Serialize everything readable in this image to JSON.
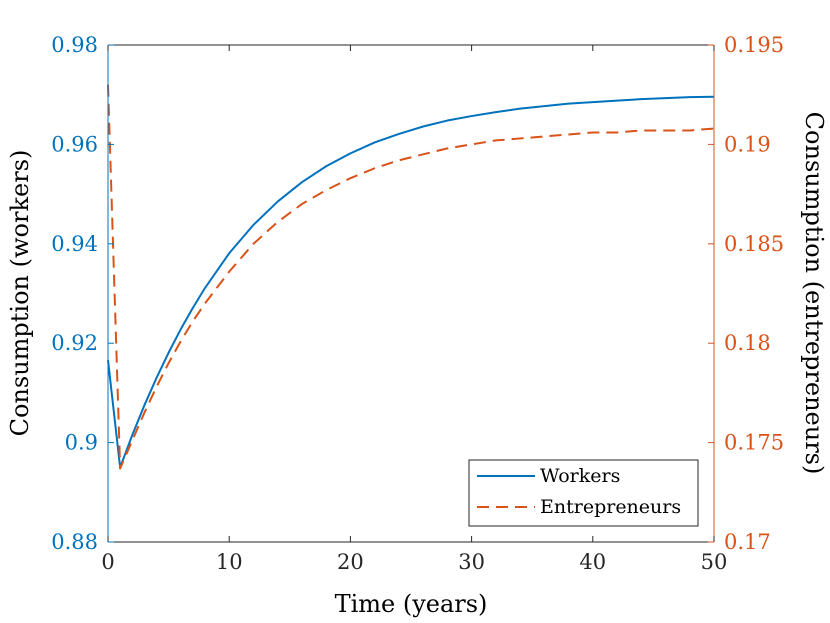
{
  "chart_data": {
    "type": "line",
    "xlabel": "Time (years)",
    "ylabel_left": "Consumption (workers)",
    "ylabel_right": "Consumption (entrepreneurs)",
    "xlim": [
      0,
      50
    ],
    "ylim_left": [
      0.88,
      0.98
    ],
    "ylim_right": [
      0.17,
      0.195
    ],
    "x_ticks": [
      "0",
      "10",
      "20",
      "30",
      "40",
      "50"
    ],
    "y_left_ticks": [
      "0.88",
      "0.9",
      "0.92",
      "0.94",
      "0.96",
      "0.98"
    ],
    "y_right_ticks": [
      "0.17",
      "0.175",
      "0.18",
      "0.185",
      "0.19",
      "0.195"
    ],
    "grid": false,
    "legend_position": "bottom-right",
    "colors": {
      "left_axis": "#0072BD",
      "right_axis": "#D95319",
      "axes": "#262626"
    },
    "series": [
      {
        "name": "Workers",
        "axis": "left",
        "style": "solid",
        "color": "#0072BD",
        "x": [
          0,
          1,
          2,
          3,
          4,
          5,
          6,
          7,
          8,
          10,
          12,
          14,
          16,
          18,
          20,
          22,
          24,
          26,
          28,
          30,
          32,
          34,
          36,
          38,
          40,
          42,
          44,
          46,
          48,
          50
        ],
        "y": [
          0.9166,
          0.895,
          0.9015,
          0.9075,
          0.913,
          0.9181,
          0.9228,
          0.9271,
          0.9311,
          0.9381,
          0.9438,
          0.9485,
          0.9524,
          0.9556,
          0.9582,
          0.9604,
          0.9621,
          0.9636,
          0.9648,
          0.9657,
          0.9665,
          0.9672,
          0.9677,
          0.9682,
          0.9685,
          0.9688,
          0.9691,
          0.9693,
          0.9695,
          0.9696
        ]
      },
      {
        "name": "Entrepreneurs",
        "axis": "right",
        "style": "dashed",
        "color": "#D95319",
        "x": [
          0,
          1,
          2,
          3,
          4,
          5,
          6,
          7,
          8,
          10,
          12,
          14,
          16,
          18,
          20,
          22,
          24,
          26,
          28,
          30,
          32,
          34,
          36,
          38,
          40,
          42,
          44,
          46,
          48,
          50
        ],
        "y": [
          0.193,
          0.1737,
          0.1751,
          0.1765,
          0.1778,
          0.179,
          0.1801,
          0.1811,
          0.182,
          0.1836,
          0.185,
          0.1861,
          0.187,
          0.1877,
          0.1883,
          0.1888,
          0.1892,
          0.1895,
          0.1898,
          0.19,
          0.1902,
          0.1903,
          0.1904,
          0.1905,
          0.1906,
          0.1906,
          0.1907,
          0.1907,
          0.1907,
          0.1908
        ]
      }
    ]
  }
}
